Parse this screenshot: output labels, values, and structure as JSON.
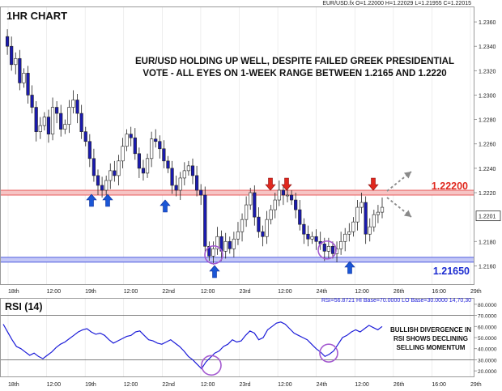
{
  "chart_data": {
    "type": "candlestick",
    "title": "1HR CHART",
    "symbol_info": "EUR/USD.fx O=1.22000 H=1.22029 L=1.21955 C=1.22015",
    "annotation": "EUR/USD HOLDING UP WELL, DESPITE FAILED GREEK PRESIDENTIAL VOTE - ALL EYES ON 1-WEEK RANGE BETWEEN 1.2165 AND 1.2220",
    "annotation_lines": [
      "EUR/USD HOLDING UP WELL, DESPITE FAILED GREEK PRESIDENTIAL",
      "VOTE - ALL EYES ON 1-WEEK RANGE BETWEEN 1.2165 AND 1.2220"
    ],
    "ylim": [
      1.2145,
      1.2372
    ],
    "y_ticks": [
      "1.2360",
      "1.2340",
      "1.2320",
      "1.2300",
      "1.2280",
      "1.2260",
      "1.2240",
      "1.2220",
      "1.2201",
      "1.2180",
      "1.2160"
    ],
    "y_tick_values": [
      1.236,
      1.234,
      1.232,
      1.23,
      1.228,
      1.226,
      1.224,
      1.222,
      1.2201,
      1.218,
      1.216
    ],
    "current_price": 1.2201,
    "x_ticks": [
      "18th",
      "12:00",
      "19th",
      "12:00",
      "22nd",
      "12:00",
      "23rd",
      "12:00",
      "24th",
      "12:00",
      "26th",
      "16:00",
      "29th"
    ],
    "resistance": {
      "value": 1.222,
      "label": "1.22200",
      "color": "#e23030"
    },
    "support": {
      "value": 1.2165,
      "label": "1.21650",
      "color": "#1f2fd6"
    },
    "price_path": [
      1.2348,
      1.234,
      1.2325,
      1.233,
      1.231,
      1.2318,
      1.23,
      1.229,
      1.227,
      1.2275,
      1.2282,
      1.2268,
      1.229,
      1.2285,
      1.2272,
      1.2276,
      1.229,
      1.2296,
      1.2285,
      1.227,
      1.2262,
      1.2248,
      1.2234,
      1.2226,
      1.2222,
      1.223,
      1.2238,
      1.2234,
      1.2246,
      1.2258,
      1.2268,
      1.2265,
      1.2252,
      1.224,
      1.2236,
      1.2248,
      1.2264,
      1.2262,
      1.2256,
      1.2246,
      1.224,
      1.2226,
      1.2222,
      1.2232,
      1.2238,
      1.2242,
      1.2234,
      1.2222,
      1.2218,
      1.2176,
      1.2168,
      1.2174,
      1.2184,
      1.2172,
      1.218,
      1.2174,
      1.2182,
      1.2188,
      1.2198,
      1.221,
      1.222,
      1.22,
      1.2188,
      1.2184,
      1.2198,
      1.2206,
      1.2214,
      1.2222,
      1.2218,
      1.2218,
      1.2214,
      1.2206,
      1.2194,
      1.2186,
      1.2182,
      1.2184,
      1.218,
      1.2178,
      1.2172,
      1.2176,
      1.217,
      1.2174,
      1.218,
      1.2186,
      1.2188,
      1.2196,
      1.2208,
      1.2212,
      1.2186,
      1.2192,
      1.2202,
      1.2204,
      1.2208
    ],
    "rsi": {
      "label": "RSI (14)",
      "info": "RSI=56.8721 HI Base=70.0000 LO Base=30.0000  14,70,30",
      "ylim": [
        15,
        85
      ],
      "y_ticks": [
        "80.0000",
        "70.0000",
        "60.0000",
        "50.0000",
        "40.0000",
        "30.0000",
        "20.0000"
      ],
      "y_tick_values": [
        80,
        70,
        60,
        50,
        40,
        30,
        20
      ],
      "hi_base": 70,
      "lo_base": 30,
      "values": [
        62,
        55,
        48,
        42,
        40,
        37,
        34,
        36,
        33,
        31,
        34,
        37,
        41,
        44,
        46,
        49,
        52,
        55,
        57,
        58,
        55,
        53,
        54,
        52,
        48,
        45,
        47,
        49,
        51,
        52,
        55,
        56,
        52,
        48,
        47,
        45,
        44,
        46,
        48,
        45,
        42,
        38,
        33,
        30,
        26,
        22,
        28,
        32,
        36,
        38,
        42,
        44,
        48,
        46,
        47,
        52,
        56,
        54,
        48,
        50,
        57,
        60,
        63,
        64,
        62,
        58,
        54,
        52,
        50,
        48,
        44,
        40,
        37,
        33,
        35,
        38,
        44,
        50,
        52,
        55,
        57,
        55,
        58,
        61,
        59,
        57,
        60
      ],
      "annotation_lines": [
        "BULLISH DIVERGENCE IN",
        "RSI SHOWS DECLINING",
        "SELLING MOMENTUM"
      ]
    },
    "colors": {
      "bull": "#ffffff",
      "bear": "#1a1ab0",
      "rsi_line": "#1c1cd8",
      "arrow_up": "#1a56d6",
      "arrow_down": "#e0281e",
      "circle": "#a45ad0"
    }
  }
}
